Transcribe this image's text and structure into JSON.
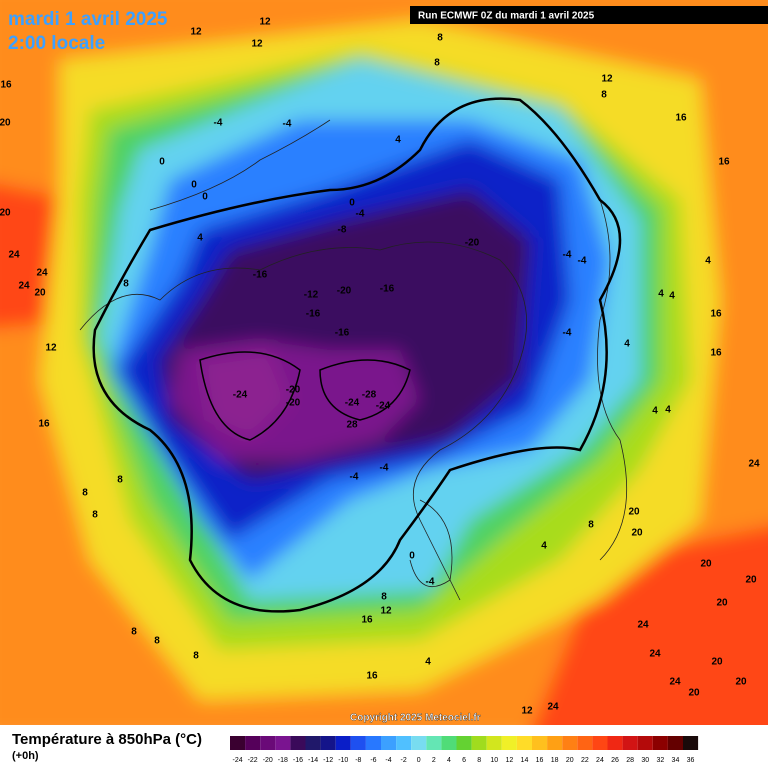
{
  "header": {
    "title": "mardi 1 avril 2025",
    "subtitle": "2:00 locale",
    "run": "Run ECMWF 0Z du mardi 1 avril 2025"
  },
  "copyright": "Copyright 2025 Meteociel.fr",
  "legend": {
    "title": "Température à 850hPa (°C)",
    "step": "(+0h)",
    "ticks": [
      -24,
      -22,
      -20,
      -18,
      -16,
      -14,
      -12,
      -10,
      -8,
      -6,
      -4,
      -2,
      0,
      2,
      4,
      6,
      8,
      10,
      12,
      14,
      16,
      18,
      20,
      22,
      24,
      26,
      28,
      30,
      32,
      34,
      36
    ],
    "colors": [
      "#3a0030",
      "#55005a",
      "#6a0a78",
      "#7a1490",
      "#3a0a5a",
      "#20186a",
      "#14148a",
      "#0a1ec8",
      "#1e50f0",
      "#2878ff",
      "#3ca0ff",
      "#50c0ff",
      "#78dcf0",
      "#64e6b4",
      "#50dc78",
      "#64d232",
      "#a0dc1e",
      "#d2e61e",
      "#f0f028",
      "#ffdc28",
      "#ffc01e",
      "#ffa014",
      "#ff8014",
      "#ff6414",
      "#ff4614",
      "#f02814",
      "#d21414",
      "#b40a0a",
      "#8c0000",
      "#640000",
      "#1a0a0a"
    ]
  },
  "contour_labels": [
    12,
    12,
    12,
    8,
    8,
    12,
    8,
    16,
    16,
    16,
    20,
    -4,
    -4,
    4,
    0,
    0,
    0,
    0,
    -4,
    -8,
    4,
    -20,
    -4,
    -4,
    4,
    20,
    24,
    24,
    24,
    20,
    8,
    -16,
    -12,
    -20,
    -16,
    -16,
    -16,
    4,
    4,
    16,
    16,
    12,
    -24,
    -20,
    -20,
    -28,
    -24,
    -24,
    28,
    -4,
    4,
    4,
    4,
    16,
    -4,
    -4,
    8,
    8,
    8,
    24,
    20,
    20,
    8,
    4,
    0,
    -4,
    20,
    20,
    8,
    12,
    16,
    24,
    20,
    8,
    8,
    8,
    4,
    24,
    20,
    16,
    24,
    20,
    20,
    12,
    24
  ]
}
